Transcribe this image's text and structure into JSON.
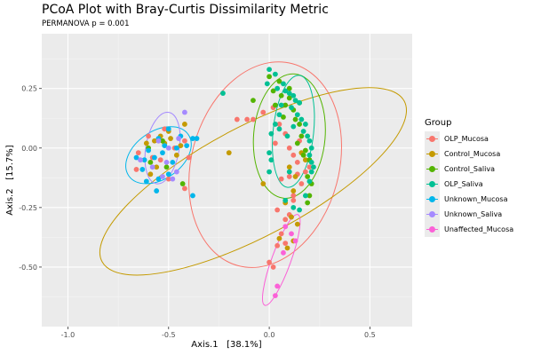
{
  "chart_data": {
    "type": "scatter",
    "title": "PCoA Plot with Bray-Curtis Dissimilarity Metric",
    "subtitle": "PERMANOVA p = 0.001",
    "xlabel": "Axis.1   [38.1%]",
    "ylabel": "Axis.2   [15.7%]",
    "xlim": [
      -1.13,
      0.71
    ],
    "ylim": [
      -0.75,
      0.48
    ],
    "x_ticks": [
      -1.0,
      -0.5,
      0.0,
      0.5
    ],
    "x_tick_labels": [
      "-1.0",
      "-0.5",
      "0.0",
      "0.5"
    ],
    "y_ticks": [
      0.25,
      0.0,
      -0.25,
      -0.5
    ],
    "y_tick_labels": [
      "0.25",
      "0.00",
      "-0.25",
      "-0.50"
    ],
    "grid": true,
    "legend": {
      "title": "Group",
      "position": "right"
    },
    "series": [
      {
        "name": "OLP_Mucosa",
        "color": "#F8766D",
        "ellipse": {
          "cx": -0.02,
          "cy": -0.07,
          "rx": 0.52,
          "ry": 0.31,
          "angle": -75
        },
        "points": [
          [
            -0.52,
            0.08
          ],
          [
            -0.55,
            0.03
          ],
          [
            -0.6,
            0.05
          ],
          [
            -0.65,
            -0.02
          ],
          [
            -0.66,
            -0.09
          ],
          [
            -0.58,
            -0.04
          ],
          [
            -0.5,
            -0.13
          ],
          [
            -0.54,
            -0.05
          ],
          [
            -0.47,
            0.0
          ],
          [
            -0.42,
            -0.17
          ],
          [
            -0.42,
            0.03
          ],
          [
            -0.4,
            -0.04
          ],
          [
            -0.16,
            0.12
          ],
          [
            -0.11,
            0.12
          ],
          [
            -0.08,
            0.12
          ],
          [
            -0.03,
            0.15
          ],
          [
            0.02,
            0.17
          ],
          [
            0.05,
            0.1
          ],
          [
            0.08,
            0.06
          ],
          [
            0.1,
            0.0
          ],
          [
            0.12,
            -0.03
          ],
          [
            0.14,
            -0.06
          ],
          [
            0.1,
            -0.12
          ],
          [
            0.06,
            -0.13
          ],
          [
            0.12,
            -0.2
          ],
          [
            0.16,
            -0.15
          ],
          [
            0.18,
            -0.1
          ],
          [
            0.2,
            -0.08
          ],
          [
            0.04,
            -0.26
          ],
          [
            0.08,
            -0.3
          ],
          [
            0.1,
            -0.28
          ],
          [
            0.12,
            -0.22
          ],
          [
            0.06,
            -0.36
          ],
          [
            0.08,
            -0.4
          ],
          [
            0.04,
            -0.41
          ],
          [
            0.0,
            -0.48
          ],
          [
            0.02,
            -0.5
          ],
          [
            0.14,
            -0.11
          ],
          [
            0.15,
            0.03
          ],
          [
            0.03,
            0.02
          ]
        ]
      },
      {
        "name": "Control_Mucosa",
        "color": "#C49A00",
        "ellipse": {
          "cx": -0.08,
          "cy": -0.14,
          "rx": 0.85,
          "ry": 0.23,
          "angle": -28
        },
        "points": [
          [
            -0.5,
            0.07
          ],
          [
            -0.54,
            0.05
          ],
          [
            -0.57,
            0.03
          ],
          [
            -0.52,
            0.02
          ],
          [
            -0.49,
            0.04
          ],
          [
            -0.46,
            -0.03
          ],
          [
            -0.56,
            -0.08
          ],
          [
            -0.59,
            -0.11
          ],
          [
            -0.61,
            0.02
          ],
          [
            -0.42,
            0.1
          ],
          [
            -0.2,
            -0.02
          ],
          [
            -0.03,
            -0.15
          ],
          [
            0.1,
            -0.08
          ],
          [
            0.13,
            -0.12
          ],
          [
            0.08,
            -0.23
          ],
          [
            0.11,
            -0.29
          ],
          [
            0.14,
            -0.32
          ],
          [
            0.05,
            -0.38
          ],
          [
            0.12,
            -0.39
          ],
          [
            0.09,
            -0.42
          ],
          [
            0.16,
            -0.02
          ],
          [
            0.18,
            -0.05
          ],
          [
            -0.44,
            0.01
          ],
          [
            0.12,
            -0.18
          ]
        ]
      },
      {
        "name": "Control_Saliva",
        "color": "#53B400",
        "ellipse": {
          "cx": 0.1,
          "cy": 0.05,
          "rx": 0.31,
          "ry": 0.15,
          "angle": -85
        },
        "points": [
          [
            -0.53,
            0.03
          ],
          [
            -0.6,
            0.0
          ],
          [
            -0.59,
            -0.06
          ],
          [
            -0.51,
            -0.08
          ],
          [
            -0.43,
            -0.15
          ],
          [
            -0.08,
            0.2
          ],
          [
            0.0,
            0.3
          ],
          [
            0.05,
            0.28
          ],
          [
            0.02,
            0.24
          ],
          [
            0.06,
            0.22
          ],
          [
            0.1,
            0.21
          ],
          [
            0.08,
            0.18
          ],
          [
            0.12,
            0.16
          ],
          [
            0.13,
            0.12
          ],
          [
            0.07,
            0.13
          ],
          [
            0.15,
            0.1
          ],
          [
            0.16,
            0.05
          ],
          [
            0.14,
            0.02
          ],
          [
            0.18,
            -0.01
          ],
          [
            0.17,
            -0.03
          ],
          [
            0.2,
            -0.05
          ],
          [
            0.19,
            -0.12
          ],
          [
            0.21,
            -0.15
          ],
          [
            0.2,
            -0.2
          ],
          [
            0.19,
            -0.23
          ],
          [
            0.03,
            0.18
          ],
          [
            0.1,
            0.25
          ],
          [
            0.15,
            0.19
          ]
        ]
      },
      {
        "name": "OLP_Saliva",
        "color": "#00C094",
        "ellipse": {
          "cx": 0.12,
          "cy": 0.07,
          "rx": 0.28,
          "ry": 0.085,
          "angle": -84
        },
        "points": [
          [
            -0.23,
            0.23
          ],
          [
            0.0,
            0.33
          ],
          [
            0.03,
            0.31
          ],
          [
            -0.01,
            0.27
          ],
          [
            0.04,
            0.25
          ],
          [
            0.07,
            0.27
          ],
          [
            0.08,
            0.24
          ],
          [
            0.1,
            0.23
          ],
          [
            0.12,
            0.22
          ],
          [
            0.13,
            0.2
          ],
          [
            0.15,
            0.19
          ],
          [
            0.11,
            0.17
          ],
          [
            0.14,
            0.14
          ],
          [
            0.16,
            0.12
          ],
          [
            0.18,
            0.1
          ],
          [
            0.12,
            0.09
          ],
          [
            0.17,
            0.07
          ],
          [
            0.19,
            0.05
          ],
          [
            0.2,
            0.03
          ],
          [
            0.21,
            0.0
          ],
          [
            0.2,
            -0.03
          ],
          [
            0.21,
            -0.06
          ],
          [
            0.22,
            -0.08
          ],
          [
            0.21,
            -0.1
          ],
          [
            0.03,
            0.1
          ],
          [
            0.05,
            0.08
          ],
          [
            0.01,
            0.06
          ],
          [
            0.09,
            0.05
          ],
          [
            0.0,
            -0.02
          ],
          [
            0.01,
            -0.05
          ],
          [
            0.0,
            -0.1
          ],
          [
            0.1,
            -0.1
          ],
          [
            0.08,
            -0.22
          ],
          [
            0.12,
            -0.25
          ],
          [
            0.15,
            -0.26
          ],
          [
            0.18,
            -0.2
          ],
          [
            0.2,
            -0.14
          ],
          [
            0.06,
            0.18
          ],
          [
            0.05,
            0.14
          ]
        ]
      },
      {
        "name": "Unknown_Mucosa",
        "color": "#00B6EB",
        "ellipse": {
          "cx": -0.55,
          "cy": -0.03,
          "rx": 0.18,
          "ry": 0.1,
          "angle": -35
        },
        "points": [
          [
            -0.5,
            0.08
          ],
          [
            -0.55,
            0.04
          ],
          [
            -0.52,
            0.01
          ],
          [
            -0.6,
            -0.01
          ],
          [
            -0.57,
            -0.04
          ],
          [
            -0.62,
            -0.05
          ],
          [
            -0.63,
            -0.09
          ],
          [
            -0.61,
            -0.14
          ],
          [
            -0.55,
            -0.13
          ],
          [
            -0.5,
            -0.11
          ],
          [
            -0.48,
            -0.06
          ],
          [
            -0.46,
            0.0
          ],
          [
            -0.44,
            0.05
          ],
          [
            -0.38,
            0.04
          ],
          [
            -0.36,
            0.04
          ],
          [
            -0.41,
            0.01
          ],
          [
            -0.56,
            -0.18
          ],
          [
            -0.38,
            -0.2
          ],
          [
            -0.66,
            -0.04
          ],
          [
            -0.53,
            -0.02
          ]
        ]
      },
      {
        "name": "Unknown_Saliva",
        "color": "#A58AFF",
        "ellipse": {
          "cx": -0.53,
          "cy": 0.0,
          "rx": 0.18,
          "ry": 0.07,
          "angle": -80
        },
        "points": [
          [
            -0.42,
            0.15
          ],
          [
            -0.45,
            0.04
          ],
          [
            -0.58,
            -0.08
          ],
          [
            -0.53,
            -0.12
          ],
          [
            -0.48,
            -0.13
          ],
          [
            -0.5,
            0.0
          ],
          [
            -0.55,
            0.03
          ],
          [
            -0.64,
            -0.05
          ],
          [
            -0.46,
            -0.1
          ],
          [
            -0.51,
            -0.06
          ]
        ]
      },
      {
        "name": "Unaffected_Mucosa",
        "color": "#FB61D7",
        "ellipse": {
          "cx": 0.06,
          "cy": -0.47,
          "rx": 0.24,
          "ry": 0.04,
          "angle": -70
        },
        "points": [
          [
            0.08,
            -0.33
          ],
          [
            0.11,
            -0.36
          ],
          [
            0.13,
            -0.39
          ],
          [
            0.07,
            -0.44
          ],
          [
            0.04,
            -0.58
          ],
          [
            0.03,
            -0.62
          ]
        ]
      }
    ]
  }
}
